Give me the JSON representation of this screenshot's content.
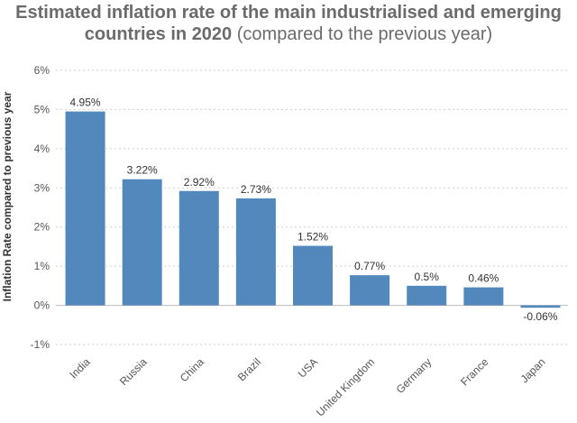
{
  "title_main": "Estimated inflation rate of the main industrialised and emerging countries in 2020",
  "title_suffix": "(compared to the previous year)",
  "chart_data": {
    "type": "bar",
    "title": "Estimated inflation rate of the main industrialised and emerging countries in 2020 (compared to the previous year)",
    "xlabel": "",
    "ylabel": "Inflation Rate compared to previous year",
    "categories": [
      "India",
      "Russia",
      "China",
      "Brazil",
      "USA",
      "United Kingdom",
      "Germany",
      "France",
      "Japan"
    ],
    "values": [
      4.95,
      3.22,
      2.92,
      2.73,
      1.52,
      0.77,
      0.5,
      0.46,
      -0.06
    ],
    "data_labels": [
      "4.95%",
      "3.22%",
      "2.92%",
      "2.73%",
      "1.52%",
      "0.77%",
      "0.5%",
      "0.46%",
      "-0.06%"
    ],
    "ylim": [
      -1,
      6
    ],
    "yticks": [
      -1,
      0,
      1,
      2,
      3,
      4,
      5,
      6
    ],
    "ytick_labels": [
      "-1%",
      "0%",
      "1%",
      "2%",
      "3%",
      "4%",
      "5%",
      "6%"
    ],
    "grid": true,
    "legend": "none",
    "bar_color": "#5288bc"
  }
}
